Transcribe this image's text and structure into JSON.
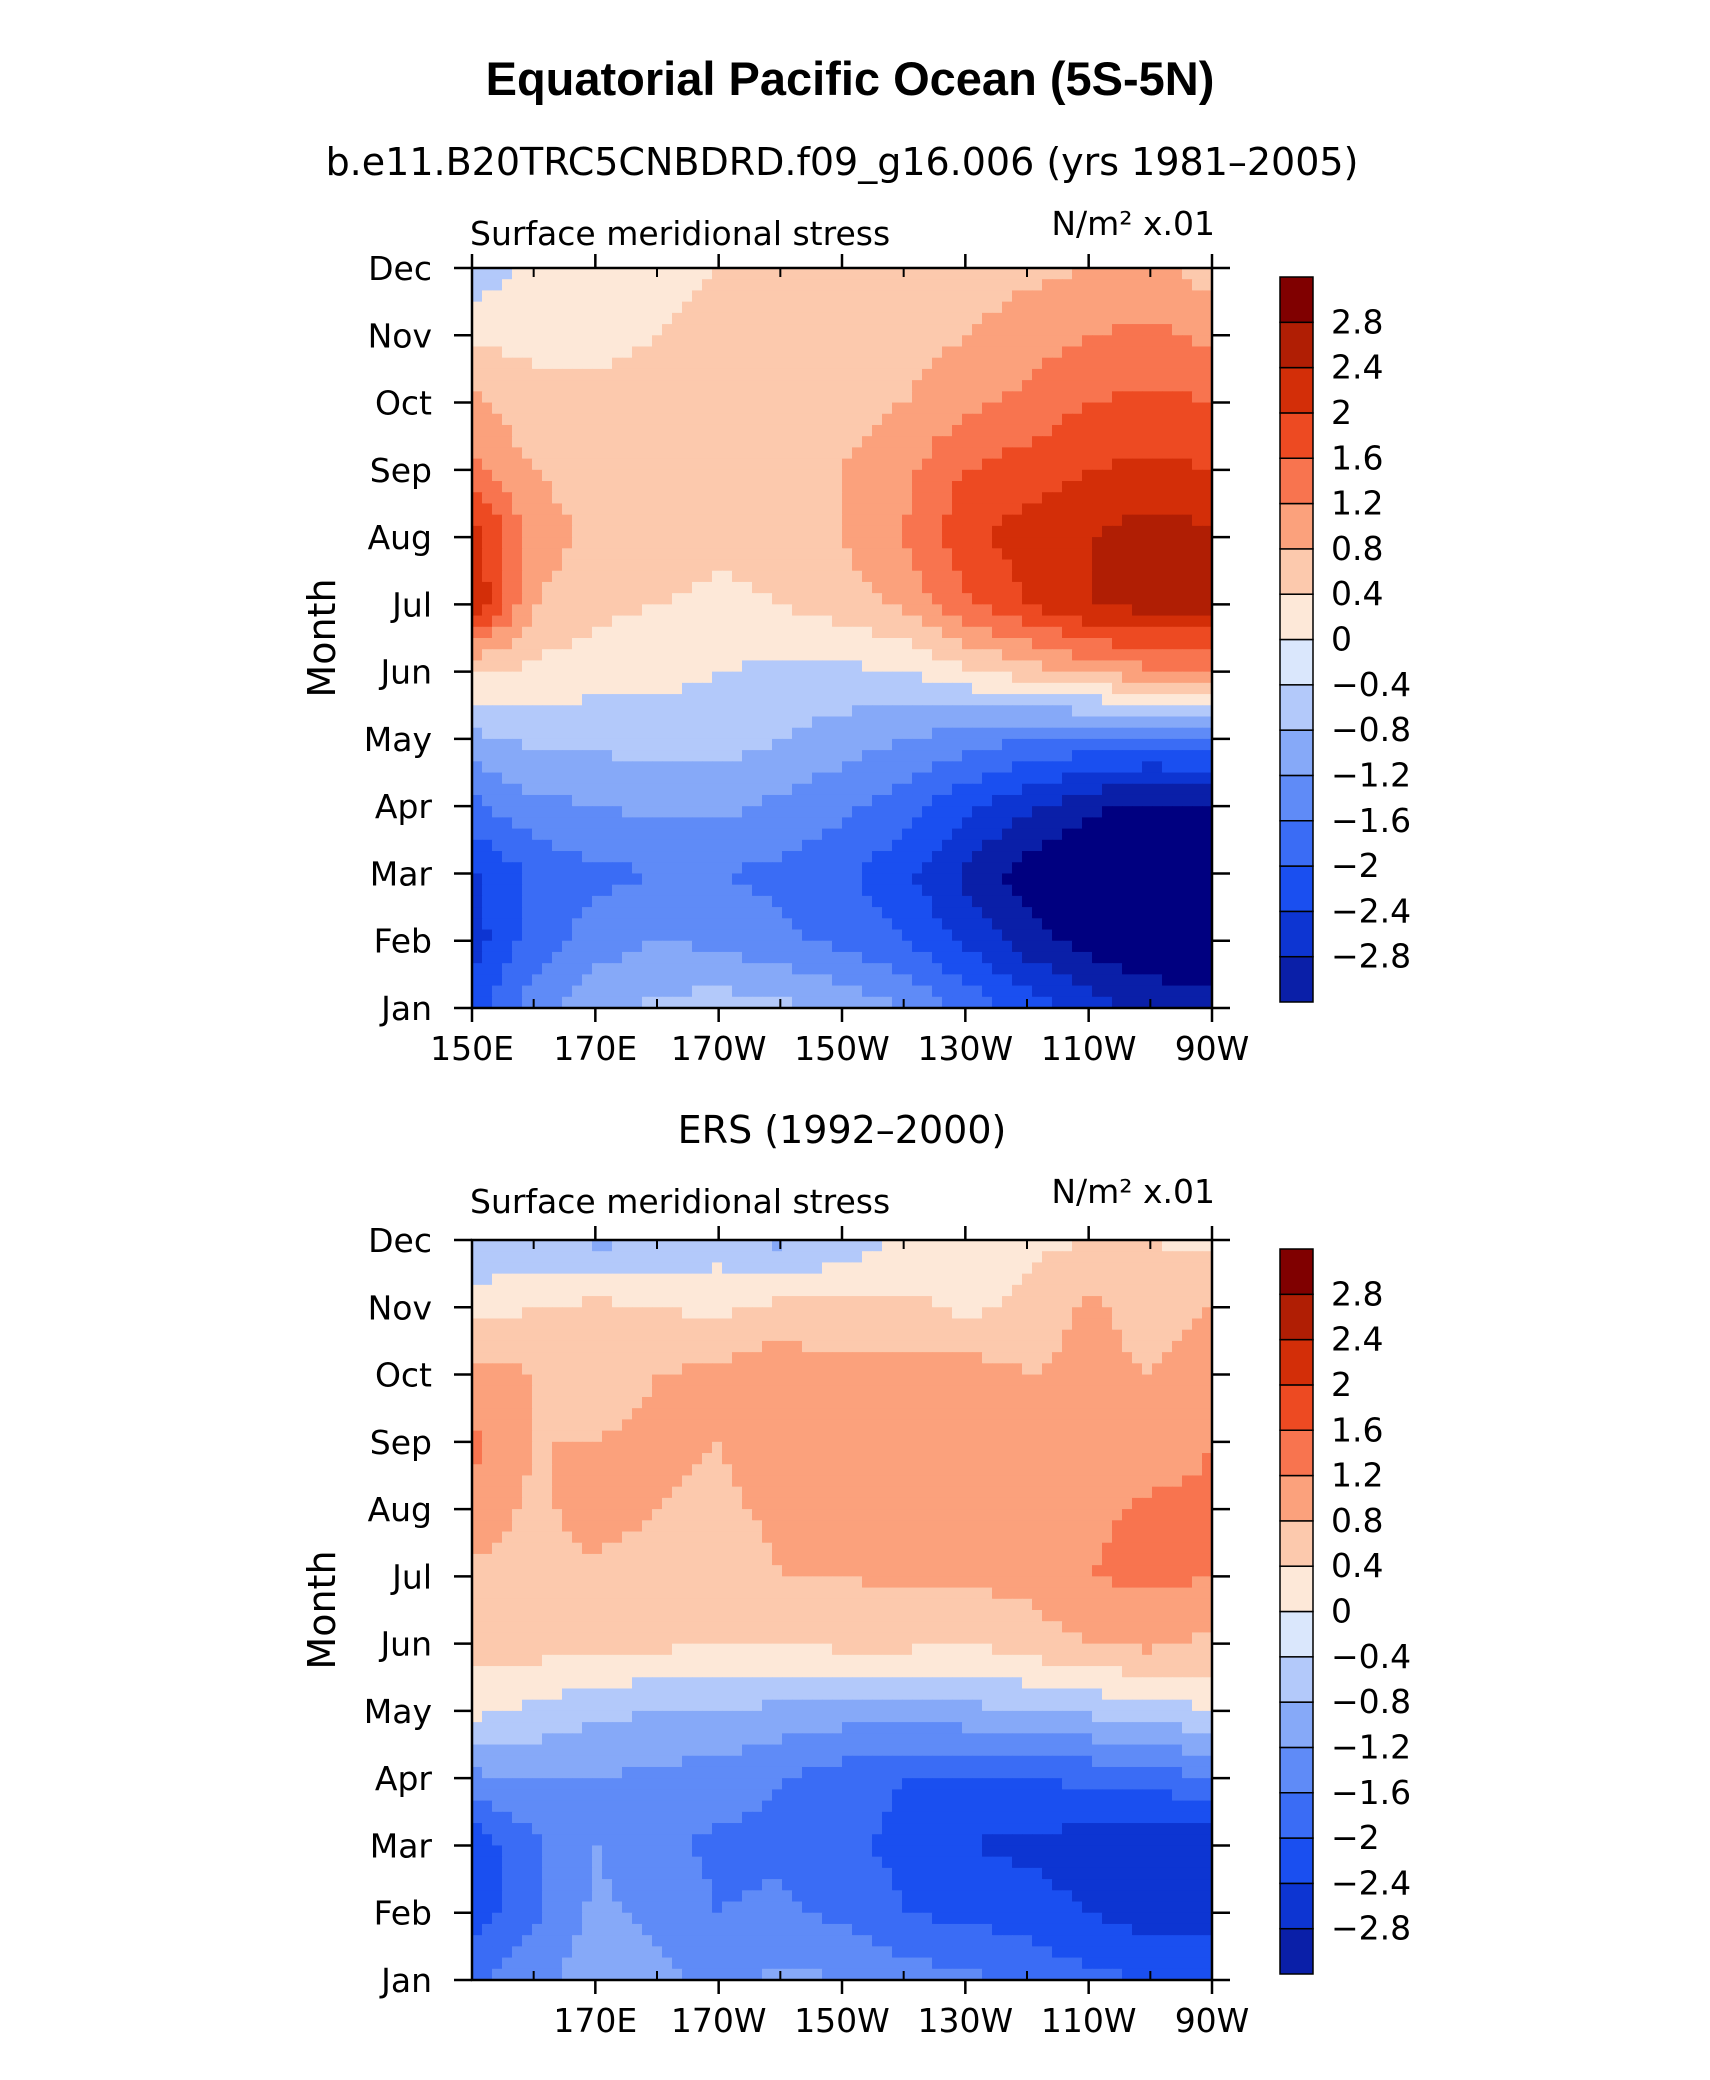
{
  "figure": {
    "title": "Equatorial Pacific Ocean (5S-5N)"
  },
  "colors": {
    "palette": [
      "#000080",
      "#0a1fa8",
      "#0d35d2",
      "#1a4ff0",
      "#3a6cf5",
      "#5f8bf7",
      "#86a9f8",
      "#b3c9fa",
      "#dae7fc",
      "#fde8d8",
      "#fcc9ad",
      "#fba17c",
      "#f8744f",
      "#ed4a22",
      "#d32e08",
      "#b01e04",
      "#800000"
    ],
    "palette_note_labels": [
      "<-2.8",
      "-2.8..-2.4",
      "-2.4..-2",
      "-2..-1.6",
      "-1.6..-1.2",
      "-1.2..-0.8",
      "-0.8..-0.4",
      "-0.4..0",
      "0..0.4",
      "0.4..0.8",
      "0.8..1.2",
      "1.2..1.6",
      "1.6..2",
      "2..2.4",
      "2.4..2.8",
      ">2.8"
    ]
  },
  "chart_data": [
    {
      "type": "heatmap",
      "title": "b.e11.B20TRC5CNBDRD.f09_g16.006 (yrs 1981–2005)",
      "left_label": "Surface meridional stress",
      "right_label": "N/m² x.01",
      "ylabel": "Month",
      "xlabel": "",
      "x_tick_labels": [
        "150E",
        "170E",
        "170W",
        "150W",
        "130W",
        "110W",
        "90W"
      ],
      "y_tick_labels": [
        "Jan",
        "Feb",
        "Mar",
        "Apr",
        "May",
        "Jun",
        "Jul",
        "Aug",
        "Sep",
        "Oct",
        "Nov",
        "Dec"
      ],
      "colorbar_labels": [
        "2.8",
        "2.4",
        "2",
        "1.6",
        "1.2",
        "0.8",
        "0.4",
        "0",
        "−0.4",
        "−0.8",
        "−1.2",
        "−1.6",
        "−2",
        "−2.4",
        "−2.8"
      ],
      "lon": [
        150,
        160,
        170,
        180,
        190,
        200,
        210,
        220,
        230,
        240,
        250,
        260,
        270
      ],
      "month": [
        1,
        2,
        3,
        4,
        5,
        6,
        7,
        8,
        9,
        10,
        11,
        12
      ],
      "z": [
        [
          -1.8,
          -1.0,
          -0.5,
          -0.3,
          -0.2,
          -0.3,
          -0.5,
          -0.8,
          -1.3,
          -1.8,
          -2.2,
          -2.5,
          -2.6
        ],
        [
          -2.2,
          -1.4,
          -1.0,
          -0.8,
          -0.9,
          -1.1,
          -1.3,
          -1.6,
          -2.1,
          -2.6,
          -3.0,
          -3.2,
          -3.2
        ],
        [
          -2.1,
          -1.5,
          -1.3,
          -1.2,
          -1.2,
          -1.3,
          -1.5,
          -1.9,
          -2.5,
          -3.0,
          -3.4,
          -3.5,
          -3.4
        ],
        [
          -1.3,
          -0.9,
          -0.8,
          -0.7,
          -0.7,
          -0.9,
          -1.1,
          -1.4,
          -1.9,
          -2.3,
          -2.7,
          -2.9,
          -2.8
        ],
        [
          -0.5,
          -0.3,
          -0.3,
          -0.2,
          -0.2,
          -0.4,
          -0.6,
          -0.8,
          -1.0,
          -1.2,
          -1.3,
          -1.4,
          -1.3
        ],
        [
          0.4,
          0.3,
          0.2,
          0.1,
          0.0,
          -0.1,
          -0.1,
          0.0,
          0.3,
          0.6,
          0.9,
          1.1,
          1.1
        ],
        [
          2.4,
          0.8,
          0.5,
          0.4,
          0.3,
          0.4,
          0.6,
          0.9,
          1.5,
          2.0,
          2.4,
          2.6,
          2.6
        ],
        [
          2.3,
          1.0,
          0.7,
          0.6,
          0.5,
          0.6,
          0.8,
          1.2,
          1.9,
          2.2,
          2.4,
          2.6,
          2.5
        ],
        [
          1.3,
          0.8,
          0.6,
          0.5,
          0.5,
          0.6,
          0.8,
          1.1,
          1.6,
          1.8,
          2.0,
          2.1,
          2.0
        ],
        [
          0.9,
          0.5,
          0.5,
          0.5,
          0.5,
          0.5,
          0.6,
          0.8,
          1.1,
          1.3,
          1.6,
          1.7,
          1.6
        ],
        [
          0.3,
          0.3,
          0.3,
          0.4,
          0.5,
          0.5,
          0.5,
          0.6,
          0.8,
          1.0,
          1.2,
          1.3,
          1.1
        ],
        [
          -0.3,
          0.1,
          0.3,
          0.3,
          0.4,
          0.4,
          0.4,
          0.5,
          0.6,
          0.7,
          0.8,
          0.9,
          0.6
        ]
      ]
    },
    {
      "type": "heatmap",
      "title": "ERS (1992–2000)",
      "left_label": "Surface meridional stress",
      "right_label": "N/m² x.01",
      "ylabel": "Month",
      "xlabel": "",
      "x_tick_labels": [
        "170E",
        "170W",
        "150W",
        "130W",
        "110W",
        "90W"
      ],
      "y_tick_labels": [
        "Jan",
        "Feb",
        "Mar",
        "Apr",
        "May",
        "Jun",
        "Jul",
        "Aug",
        "Sep",
        "Oct",
        "Nov",
        "Dec"
      ],
      "colorbar_labels": [
        "2.8",
        "2.4",
        "2",
        "1.6",
        "1.2",
        "0.8",
        "0.4",
        "0",
        "−0.4",
        "−0.8",
        "−1.2",
        "−1.6",
        "−2",
        "−2.4",
        "−2.8"
      ],
      "lon": [
        150,
        160,
        170,
        180,
        190,
        200,
        210,
        220,
        230,
        240,
        250,
        260,
        270
      ],
      "month": [
        1,
        2,
        3,
        4,
        5,
        6,
        7,
        8,
        9,
        10,
        11,
        12
      ],
      "z": [
        [
          -1.3,
          -0.9,
          -0.6,
          -0.7,
          -0.9,
          -0.7,
          -0.8,
          -1.0,
          -1.1,
          -1.3,
          -1.5,
          -1.6,
          -1.6
        ],
        [
          -1.8,
          -1.3,
          -0.7,
          -0.9,
          -1.2,
          -1.1,
          -1.3,
          -1.6,
          -1.7,
          -1.8,
          -2.0,
          -2.2,
          -2.2
        ],
        [
          -1.9,
          -1.3,
          -0.8,
          -1.1,
          -1.3,
          -1.3,
          -1.5,
          -1.7,
          -2.0,
          -2.1,
          -2.2,
          -2.4,
          -2.3
        ],
        [
          -0.9,
          -0.8,
          -0.8,
          -0.9,
          -1.0,
          -1.2,
          -1.4,
          -1.6,
          -1.7,
          -1.6,
          -1.5,
          -1.4,
          -1.2
        ],
        [
          0.1,
          -0.1,
          -0.3,
          -0.4,
          -0.4,
          -0.5,
          -0.6,
          -0.6,
          -0.5,
          -0.4,
          -0.3,
          -0.2,
          0.0
        ],
        [
          0.5,
          0.6,
          0.5,
          0.5,
          0.4,
          0.4,
          0.5,
          0.5,
          0.4,
          0.6,
          0.8,
          0.9,
          0.7
        ],
        [
          0.7,
          0.6,
          0.7,
          0.6,
          0.5,
          0.8,
          0.8,
          0.9,
          0.9,
          0.9,
          1.2,
          1.3,
          1.2
        ],
        [
          1.1,
          0.7,
          1.0,
          0.8,
          0.7,
          0.9,
          1.0,
          1.1,
          1.1,
          1.0,
          1.1,
          1.3,
          1.3
        ],
        [
          1.3,
          0.8,
          0.8,
          0.9,
          0.8,
          1.0,
          1.0,
          1.1,
          1.1,
          0.9,
          0.8,
          0.9,
          1.2
        ],
        [
          1.0,
          0.8,
          0.6,
          0.8,
          0.9,
          1.1,
          0.9,
          1.0,
          1.0,
          0.8,
          0.9,
          0.8,
          1.1
        ],
        [
          0.2,
          0.4,
          0.5,
          0.4,
          0.3,
          0.5,
          0.5,
          0.5,
          0.3,
          0.5,
          0.9,
          0.6,
          0.8
        ],
        [
          -0.4,
          -0.3,
          -0.5,
          -0.4,
          -0.2,
          -0.5,
          -0.3,
          0.1,
          0.2,
          0.3,
          0.4,
          0.4,
          0.3
        ]
      ]
    }
  ]
}
